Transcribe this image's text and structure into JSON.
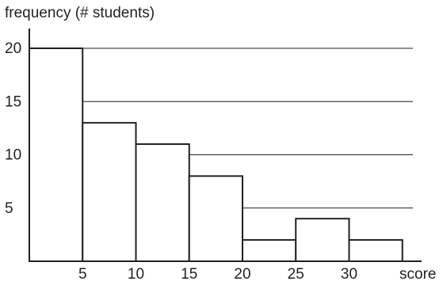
{
  "chart_data": {
    "type": "bar",
    "title": "",
    "ylabel": "frequency (# students)",
    "xlabel": "score",
    "bins": [
      {
        "from": 0,
        "to": 5,
        "value": 20
      },
      {
        "from": 5,
        "to": 10,
        "value": 13
      },
      {
        "from": 10,
        "to": 15,
        "value": 11
      },
      {
        "from": 15,
        "to": 20,
        "value": 8
      },
      {
        "from": 20,
        "to": 25,
        "value": 2
      },
      {
        "from": 25,
        "to": 30,
        "value": 4
      },
      {
        "from": 30,
        "to": 35,
        "value": 2
      }
    ],
    "xticks": [
      "5",
      "10",
      "15",
      "20",
      "25",
      "30"
    ],
    "xtick_values": [
      5,
      10,
      15,
      20,
      25,
      30
    ],
    "yticks": [
      "5",
      "10",
      "15",
      "20"
    ],
    "ytick_values": [
      5,
      10,
      15,
      20
    ],
    "xlim": [
      0,
      36
    ],
    "ylim": [
      0,
      22
    ],
    "grid": "horizontal",
    "legend": "none"
  }
}
